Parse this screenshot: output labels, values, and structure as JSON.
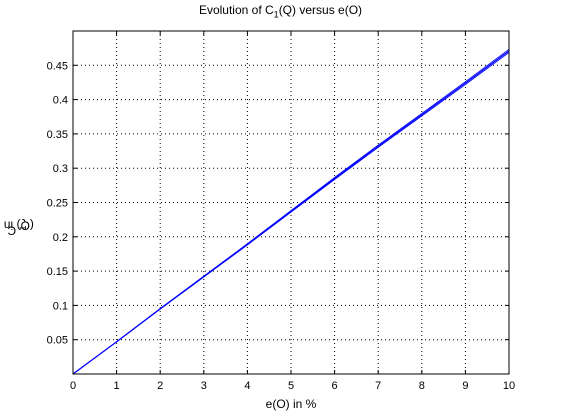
{
  "chart_data": {
    "type": "line",
    "title_main": "Evolution of C",
    "title_sub": "1",
    "title_rest": "(Q) versus e(O)",
    "xlabel": "e(O) in %",
    "ylabel_main": "C",
    "ylabel_sub": "1",
    "ylabel_rest": "(Q) in %",
    "xlim": [
      0,
      10
    ],
    "ylim": [
      0,
      0.5
    ],
    "grid": true,
    "x_ticks": [
      0,
      1,
      2,
      3,
      4,
      5,
      6,
      7,
      8,
      9,
      10
    ],
    "x_tick_labels": [
      "0",
      "1",
      "2",
      "3",
      "4",
      "5",
      "6",
      "7",
      "8",
      "9",
      "10"
    ],
    "y_ticks": [
      0.05,
      0.1,
      0.15,
      0.2,
      0.25,
      0.3,
      0.35,
      0.4,
      0.45
    ],
    "y_tick_labels": [
      "0.05",
      "0.1",
      "0.15",
      "0.2",
      "0.25",
      "0.3",
      "0.35",
      "0.4",
      "0.45"
    ],
    "line_color": "#0000ff",
    "series": [
      {
        "x": [
          0,
          1,
          2,
          3,
          4,
          5,
          6,
          7,
          8,
          9,
          10
        ],
        "y": [
          0,
          0.047,
          0.095,
          0.142,
          0.189,
          0.237,
          0.285,
          0.332,
          0.378,
          0.424,
          0.471
        ]
      }
    ]
  }
}
